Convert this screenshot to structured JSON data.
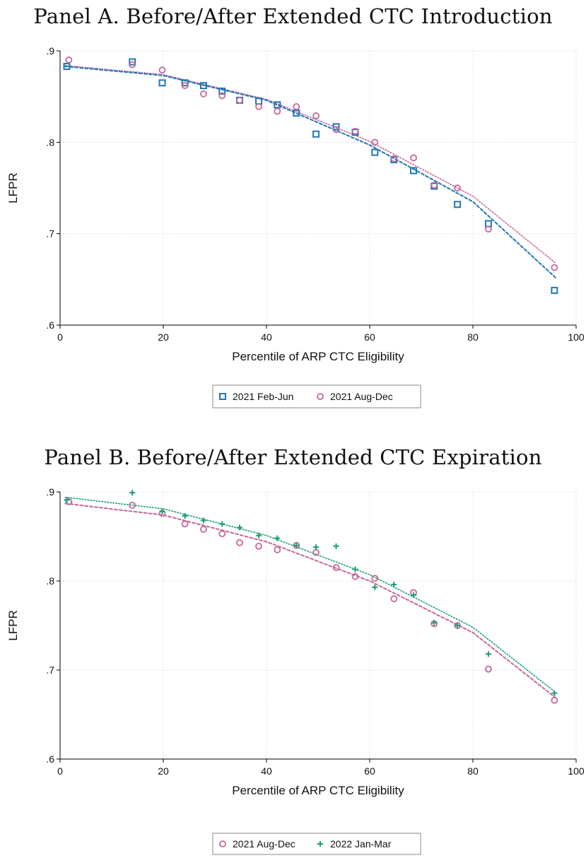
{
  "colors": {
    "blue": "#1f77b4",
    "pink": "#c5679c",
    "green": "#1a9e77",
    "grid": "#c8c8c8",
    "axis": "#000000"
  },
  "panels": [
    {
      "title": "Panel A. Before/After Extended CTC Introduction",
      "ylabel": "LFPR",
      "xlabel": "Percentile of ARP CTC Eligibility",
      "legend": [
        "2021 Feb-Jun",
        "2021 Aug-Dec"
      ]
    },
    {
      "title": "Panel B. Before/After Extended CTC Expiration",
      "ylabel": "LFPR",
      "xlabel": "Percentile of ARP CTC Eligibility",
      "legend": [
        "2021 Aug-Dec",
        "2022 Jan-Mar"
      ]
    }
  ],
  "chart_data": [
    {
      "type": "scatter",
      "title": "Panel A. Before/After Extended CTC Introduction",
      "xlabel": "Percentile of ARP CTC Eligibility",
      "ylabel": "LFPR",
      "xlim": [
        0,
        100
      ],
      "ylim": [
        0.6,
        0.9
      ],
      "xticks": [
        "0",
        "20",
        "40",
        "60",
        "80",
        "100"
      ],
      "yticks": [
        ".6",
        ".7",
        ".8",
        ".9"
      ],
      "grid": true,
      "legend_position": "bottom",
      "series": [
        {
          "name": "2021 Feb-Jun",
          "marker": "square",
          "color": "#1f77b4",
          "fit_line": "dashed",
          "points": [
            [
              1.3,
              0.883
            ],
            [
              14,
              0.888
            ],
            [
              19.8,
              0.865
            ],
            [
              24.2,
              0.865
            ],
            [
              27.8,
              0.862
            ],
            [
              31.4,
              0.856
            ],
            [
              34.8,
              0.846
            ],
            [
              38.5,
              0.845
            ],
            [
              42.1,
              0.841
            ],
            [
              45.8,
              0.832
            ],
            [
              49.6,
              0.809
            ],
            [
              53.5,
              0.817
            ],
            [
              57.2,
              0.811
            ],
            [
              61,
              0.789
            ],
            [
              64.7,
              0.781
            ],
            [
              68.5,
              0.769
            ],
            [
              72.5,
              0.752
            ],
            [
              77,
              0.732
            ],
            [
              83,
              0.711
            ],
            [
              95.8,
              0.638
            ]
          ],
          "fit": [
            [
              1,
              0.883
            ],
            [
              20,
              0.873
            ],
            [
              40,
              0.846
            ],
            [
              60,
              0.797
            ],
            [
              80,
              0.735
            ],
            [
              96,
              0.652
            ]
          ]
        },
        {
          "name": "2021 Aug-Dec",
          "marker": "circle",
          "color": "#c5679c",
          "fit_line": "dotted",
          "points": [
            [
              1.7,
              0.89
            ],
            [
              14,
              0.885
            ],
            [
              19.8,
              0.879
            ],
            [
              24.2,
              0.862
            ],
            [
              27.8,
              0.853
            ],
            [
              31.4,
              0.851
            ],
            [
              34.8,
              0.846
            ],
            [
              38.5,
              0.839
            ],
            [
              42.1,
              0.834
            ],
            [
              45.8,
              0.839
            ],
            [
              49.6,
              0.829
            ],
            [
              53.5,
              0.814
            ],
            [
              57.2,
              0.812
            ],
            [
              61,
              0.8
            ],
            [
              64.7,
              0.782
            ],
            [
              68.5,
              0.783
            ],
            [
              72.5,
              0.753
            ],
            [
              77,
              0.75
            ],
            [
              83,
              0.705
            ],
            [
              95.8,
              0.663
            ]
          ],
          "fit": [
            [
              1,
              0.884
            ],
            [
              20,
              0.874
            ],
            [
              40,
              0.847
            ],
            [
              60,
              0.801
            ],
            [
              80,
              0.741
            ],
            [
              96,
              0.668
            ]
          ]
        }
      ]
    },
    {
      "type": "scatter",
      "title": "Panel B. Before/After Extended CTC Expiration",
      "xlabel": "Percentile of ARP CTC Eligibility",
      "ylabel": "LFPR",
      "xlim": [
        0,
        100
      ],
      "ylim": [
        0.6,
        0.9
      ],
      "xticks": [
        "0",
        "20",
        "40",
        "60",
        "80",
        "100"
      ],
      "yticks": [
        ".6",
        ".7",
        ".8",
        ".9"
      ],
      "grid": true,
      "legend_position": "bottom",
      "series": [
        {
          "name": "2021 Aug-Dec",
          "marker": "circle",
          "color": "#c5679c",
          "fit_line": "dashed",
          "points": [
            [
              1.7,
              0.889
            ],
            [
              14,
              0.885
            ],
            [
              19.8,
              0.876
            ],
            [
              24.2,
              0.864
            ],
            [
              27.8,
              0.858
            ],
            [
              31.4,
              0.853
            ],
            [
              34.8,
              0.843
            ],
            [
              38.5,
              0.839
            ],
            [
              42.1,
              0.835
            ],
            [
              45.8,
              0.84
            ],
            [
              49.6,
              0.832
            ],
            [
              53.5,
              0.815
            ],
            [
              57.2,
              0.805
            ],
            [
              61,
              0.803
            ],
            [
              64.7,
              0.78
            ],
            [
              68.5,
              0.787
            ],
            [
              72.5,
              0.752
            ],
            [
              77,
              0.75
            ],
            [
              83,
              0.701
            ],
            [
              95.8,
              0.666
            ]
          ],
          "fit": [
            [
              1,
              0.887
            ],
            [
              20,
              0.874
            ],
            [
              40,
              0.844
            ],
            [
              60,
              0.8
            ],
            [
              80,
              0.742
            ],
            [
              96,
              0.669
            ]
          ]
        },
        {
          "name": "2022 Jan-Mar",
          "marker": "plus",
          "color": "#1a9e77",
          "fit_line": "dotted",
          "points": [
            [
              1.3,
              0.891
            ],
            [
              14,
              0.899
            ],
            [
              19.8,
              0.878
            ],
            [
              24.2,
              0.873
            ],
            [
              27.8,
              0.868
            ],
            [
              31.4,
              0.864
            ],
            [
              34.8,
              0.86
            ],
            [
              38.5,
              0.851
            ],
            [
              42.1,
              0.848
            ],
            [
              45.8,
              0.84
            ],
            [
              49.6,
              0.838
            ],
            [
              53.5,
              0.839
            ],
            [
              57.2,
              0.813
            ],
            [
              61,
              0.793
            ],
            [
              64.7,
              0.796
            ],
            [
              68.5,
              0.784
            ],
            [
              72.5,
              0.753
            ],
            [
              77,
              0.75
            ],
            [
              83,
              0.718
            ],
            [
              95.8,
              0.674
            ]
          ],
          "fit": [
            [
              1,
              0.894
            ],
            [
              20,
              0.881
            ],
            [
              40,
              0.851
            ],
            [
              60,
              0.807
            ],
            [
              80,
              0.748
            ],
            [
              96,
              0.675
            ]
          ]
        }
      ]
    }
  ]
}
